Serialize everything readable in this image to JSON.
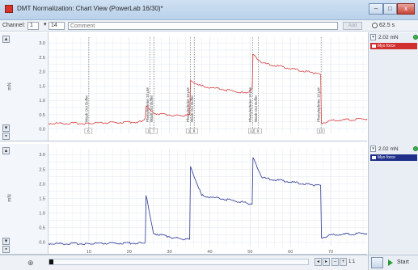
{
  "window": {
    "title": "DMT Normalization: Chart View (PowerLab 16/30)*",
    "minimize": "–",
    "maximize": "□",
    "close": "x"
  },
  "toolbar": {
    "channel_label": "Channel:",
    "channel_value": "1",
    "block_value": "14",
    "comment_placeholder": "Comment",
    "add_label": "Add",
    "rate": "62.5 s"
  },
  "colors": {
    "trace_top": "#d94040",
    "trace_bottom": "#2a3590",
    "grid": "#dfe6f0"
  },
  "top_panel": {
    "unit": "mN",
    "range": "2.02 mN",
    "channel_name": "Myo force",
    "yticks": [
      "3.0",
      "2.5",
      "2.0",
      "1.5",
      "1.0",
      "0.5",
      "0.0"
    ],
    "comments": [
      {
        "text": "Wash Out Buffer",
        "num": "6",
        "x": 10
      },
      {
        "text": "Phenylephrine 10 μM",
        "num": "10",
        "x": 25.2
      },
      {
        "text": "Wash Out Buffer",
        "num": "7",
        "x": 26.2
      },
      {
        "text": "Phenylephrine 10 μM",
        "num": "11",
        "x": 35.2
      },
      {
        "text": "Wash Out Buffer",
        "num": "8",
        "x": 36.2
      },
      {
        "text": "Phenylephrine 10 μM",
        "num": "12",
        "x": 50.6
      },
      {
        "text": "Wash Out Buffer",
        "num": "9",
        "x": 52
      },
      {
        "text": "Phenylephrine 10 μM",
        "num": "13",
        "x": 67.6
      }
    ]
  },
  "bottom_panel": {
    "unit": "mN",
    "range": "2.02 mN",
    "channel_name": "Myo force",
    "yticks": [
      "3.0",
      "2.5",
      "2.0",
      "1.5",
      "1.0",
      "0.5",
      "0.0"
    ]
  },
  "xaxis": {
    "ticks": [
      "10",
      "20",
      "30",
      "40",
      "50",
      "60",
      "70"
    ]
  },
  "status": {
    "start_label": "Start",
    "zoom": "1:1"
  },
  "chart_data": {
    "type": "line",
    "title": "",
    "xlabel": "",
    "ylabel": "mN",
    "xlim": [
      0,
      79
    ],
    "ylim": [
      -0.15,
      3.2
    ],
    "grid": true,
    "series": [
      {
        "name": "Myo force",
        "x": [
          0,
          9.9,
          10,
          23,
          24,
          24.2,
          26,
          33,
          35,
          35.2,
          38,
          49,
          50.5,
          50.7,
          53,
          66,
          67.5,
          67.7,
          70,
          79
        ],
        "top": [
          0.2,
          0.2,
          0.2,
          0.25,
          0.4,
          0.8,
          0.55,
          0.45,
          0.5,
          1.7,
          1.5,
          1.25,
          1.4,
          2.6,
          2.3,
          1.95,
          1.9,
          0.2,
          0.3,
          0.35
        ],
        "bottom": [
          -0.05,
          -0.05,
          -0.05,
          -0.03,
          0.0,
          1.6,
          0.3,
          0.1,
          0.1,
          2.6,
          1.6,
          1.35,
          1.3,
          2.9,
          2.2,
          1.95,
          1.95,
          0.15,
          0.25,
          0.3
        ]
      }
    ]
  }
}
